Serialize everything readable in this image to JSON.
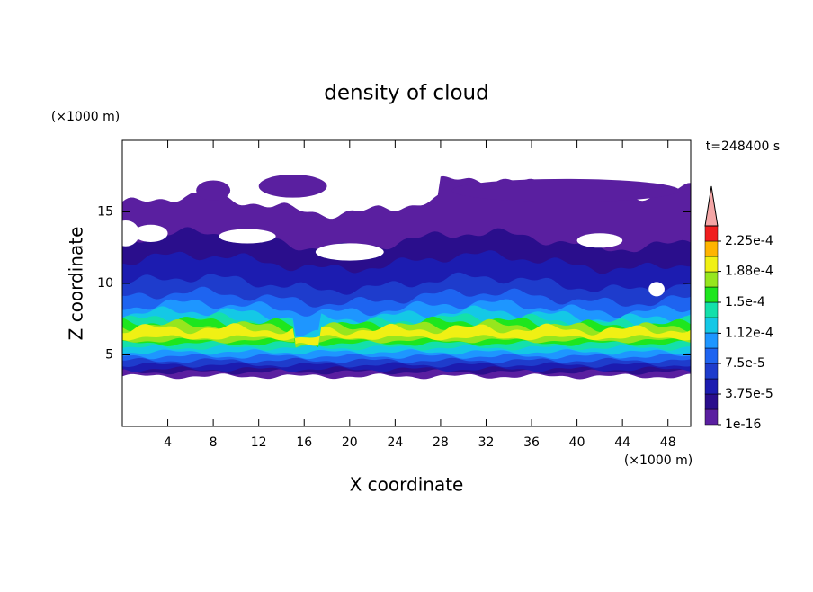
{
  "chart_data": {
    "type": "contour",
    "title": "density of cloud",
    "x_label": "X coordinate",
    "y_label": "Z coordinate",
    "x_unit": "(×1000 m)",
    "y_unit": "(×1000 m)",
    "annotation": "t=248400 s",
    "xlim": [
      0,
      50
    ],
    "ylim": [
      0,
      20
    ],
    "xticks": [
      4,
      8,
      12,
      16,
      20,
      24,
      28,
      32,
      36,
      40,
      44,
      48
    ],
    "yticks": [
      5,
      10,
      15
    ],
    "colorbar": {
      "levels": [
        1e-16,
        1.875e-05,
        3.75e-05,
        5.625e-05,
        7.5e-05,
        9.375e-05,
        0.0001125,
        0.00013125,
        0.00015,
        0.00016875,
        0.0001875,
        0.00020625,
        0.000225,
        0.00024375
      ],
      "colors": [
        "#5a1fa0",
        "#2a0e8c",
        "#1c1cb0",
        "#1e3ccc",
        "#1e64f0",
        "#1e96ff",
        "#14c8e6",
        "#14e0aa",
        "#1ee61e",
        "#96e61e",
        "#f0f014",
        "#ffb400",
        "#f01e1e"
      ],
      "extend_color": "#f4a6a6",
      "ticks": [
        {
          "value": 1e-16,
          "label": "1e-16"
        },
        {
          "value": 3.75e-05,
          "label": "3.75e-5"
        },
        {
          "value": 7.5e-05,
          "label": "7.5e-5"
        },
        {
          "value": 0.000112,
          "label": "1.12e-4"
        },
        {
          "value": 0.00015,
          "label": "1.5e-4"
        },
        {
          "value": 0.000188,
          "label": "1.88e-4"
        },
        {
          "value": 0.000225,
          "label": "2.25e-4"
        }
      ]
    }
  }
}
